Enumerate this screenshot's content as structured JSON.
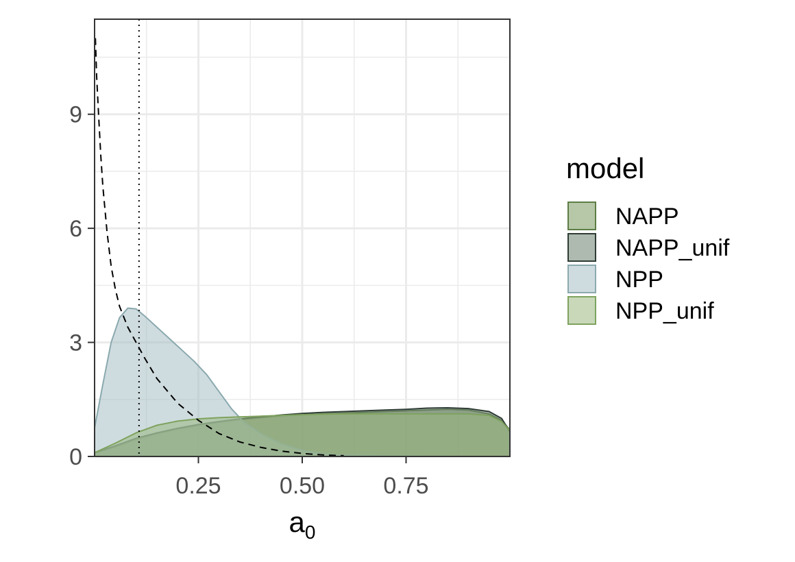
{
  "chart_data": {
    "type": "area",
    "xlabel": "a",
    "xlabel_subscript": "0",
    "ylabel": "",
    "xlim": [
      0,
      1
    ],
    "ylim": [
      0,
      11.5
    ],
    "x_ticks": [
      0.25,
      0.5,
      0.75
    ],
    "x_tick_labels": [
      "0.25",
      "0.50",
      "0.75"
    ],
    "y_ticks": [
      0,
      3,
      6,
      9
    ],
    "y_tick_labels": [
      "0",
      "3",
      "6",
      "9"
    ],
    "grid": true,
    "legend": {
      "title": "model",
      "position": "right"
    },
    "series": [
      {
        "name": "NAPP",
        "fill": "#7a9a5e",
        "stroke": "#5d7d45",
        "x": [
          0,
          0.05,
          0.1,
          0.15,
          0.2,
          0.25,
          0.3,
          0.35,
          0.4,
          0.45,
          0.5,
          0.55,
          0.6,
          0.65,
          0.7,
          0.75,
          0.8,
          0.85,
          0.9,
          0.95,
          0.98,
          1.0
        ],
        "y": [
          0.08,
          0.25,
          0.45,
          0.6,
          0.72,
          0.82,
          0.9,
          0.97,
          1.02,
          1.07,
          1.1,
          1.12,
          1.14,
          1.16,
          1.18,
          1.2,
          1.22,
          1.24,
          1.22,
          1.12,
          0.95,
          0.7
        ]
      },
      {
        "name": "NAPP_unif",
        "fill": "#6b7f70",
        "stroke": "#2e3d35",
        "x": [
          0,
          0.05,
          0.1,
          0.15,
          0.2,
          0.25,
          0.3,
          0.35,
          0.4,
          0.45,
          0.5,
          0.55,
          0.6,
          0.65,
          0.7,
          0.75,
          0.8,
          0.85,
          0.9,
          0.95,
          0.98,
          1.0
        ],
        "y": [
          0.1,
          0.28,
          0.48,
          0.62,
          0.74,
          0.84,
          0.92,
          0.99,
          1.04,
          1.09,
          1.13,
          1.16,
          1.18,
          1.2,
          1.22,
          1.24,
          1.27,
          1.28,
          1.26,
          1.18,
          1.0,
          0.65
        ]
      },
      {
        "name": "NPP",
        "fill": "#a8c0c5",
        "stroke": "#8aa9ae",
        "x": [
          0,
          0.02,
          0.04,
          0.06,
          0.08,
          0.1,
          0.12,
          0.15,
          0.18,
          0.21,
          0.24,
          0.27,
          0.3,
          0.33,
          0.36,
          0.4,
          0.45,
          0.5,
          0.55,
          0.6,
          0.7,
          0.8,
          0.9,
          1.0
        ],
        "y": [
          0.75,
          1.9,
          3.0,
          3.65,
          3.9,
          3.88,
          3.7,
          3.4,
          3.1,
          2.8,
          2.5,
          2.15,
          1.7,
          1.25,
          0.9,
          0.6,
          0.33,
          0.16,
          0.07,
          0.03,
          0.01,
          0.005,
          0.0,
          0.0
        ]
      },
      {
        "name": "NPP_unif",
        "fill": "#9ab880",
        "stroke": "#7ea35e",
        "x": [
          0,
          0.05,
          0.1,
          0.15,
          0.2,
          0.25,
          0.3,
          0.35,
          0.4,
          0.45,
          0.5,
          0.55,
          0.6,
          0.65,
          0.7,
          0.75,
          0.8,
          0.85,
          0.9,
          0.95,
          0.98,
          1.0
        ],
        "y": [
          0.1,
          0.35,
          0.62,
          0.82,
          0.93,
          0.99,
          1.02,
          1.04,
          1.06,
          1.08,
          1.1,
          1.11,
          1.12,
          1.12,
          1.12,
          1.12,
          1.12,
          1.12,
          1.12,
          1.08,
          0.92,
          0.68
        ]
      }
    ],
    "prior_curve": {
      "style": "dashed",
      "color": "#000000",
      "x": [
        0.002,
        0.005,
        0.01,
        0.015,
        0.02,
        0.03,
        0.04,
        0.05,
        0.06,
        0.08,
        0.1,
        0.12,
        0.15,
        0.2,
        0.25,
        0.3,
        0.35,
        0.4,
        0.45,
        0.5,
        0.55,
        0.6
      ],
      "y": [
        11.0,
        10.0,
        8.9,
        7.9,
        7.1,
        5.9,
        5.0,
        4.4,
        3.95,
        3.4,
        3.0,
        2.6,
        2.05,
        1.4,
        0.95,
        0.6,
        0.38,
        0.24,
        0.14,
        0.08,
        0.04,
        0.02
      ]
    },
    "vertical_line": {
      "x": 0.107,
      "style": "dotted",
      "color": "#000000"
    }
  }
}
